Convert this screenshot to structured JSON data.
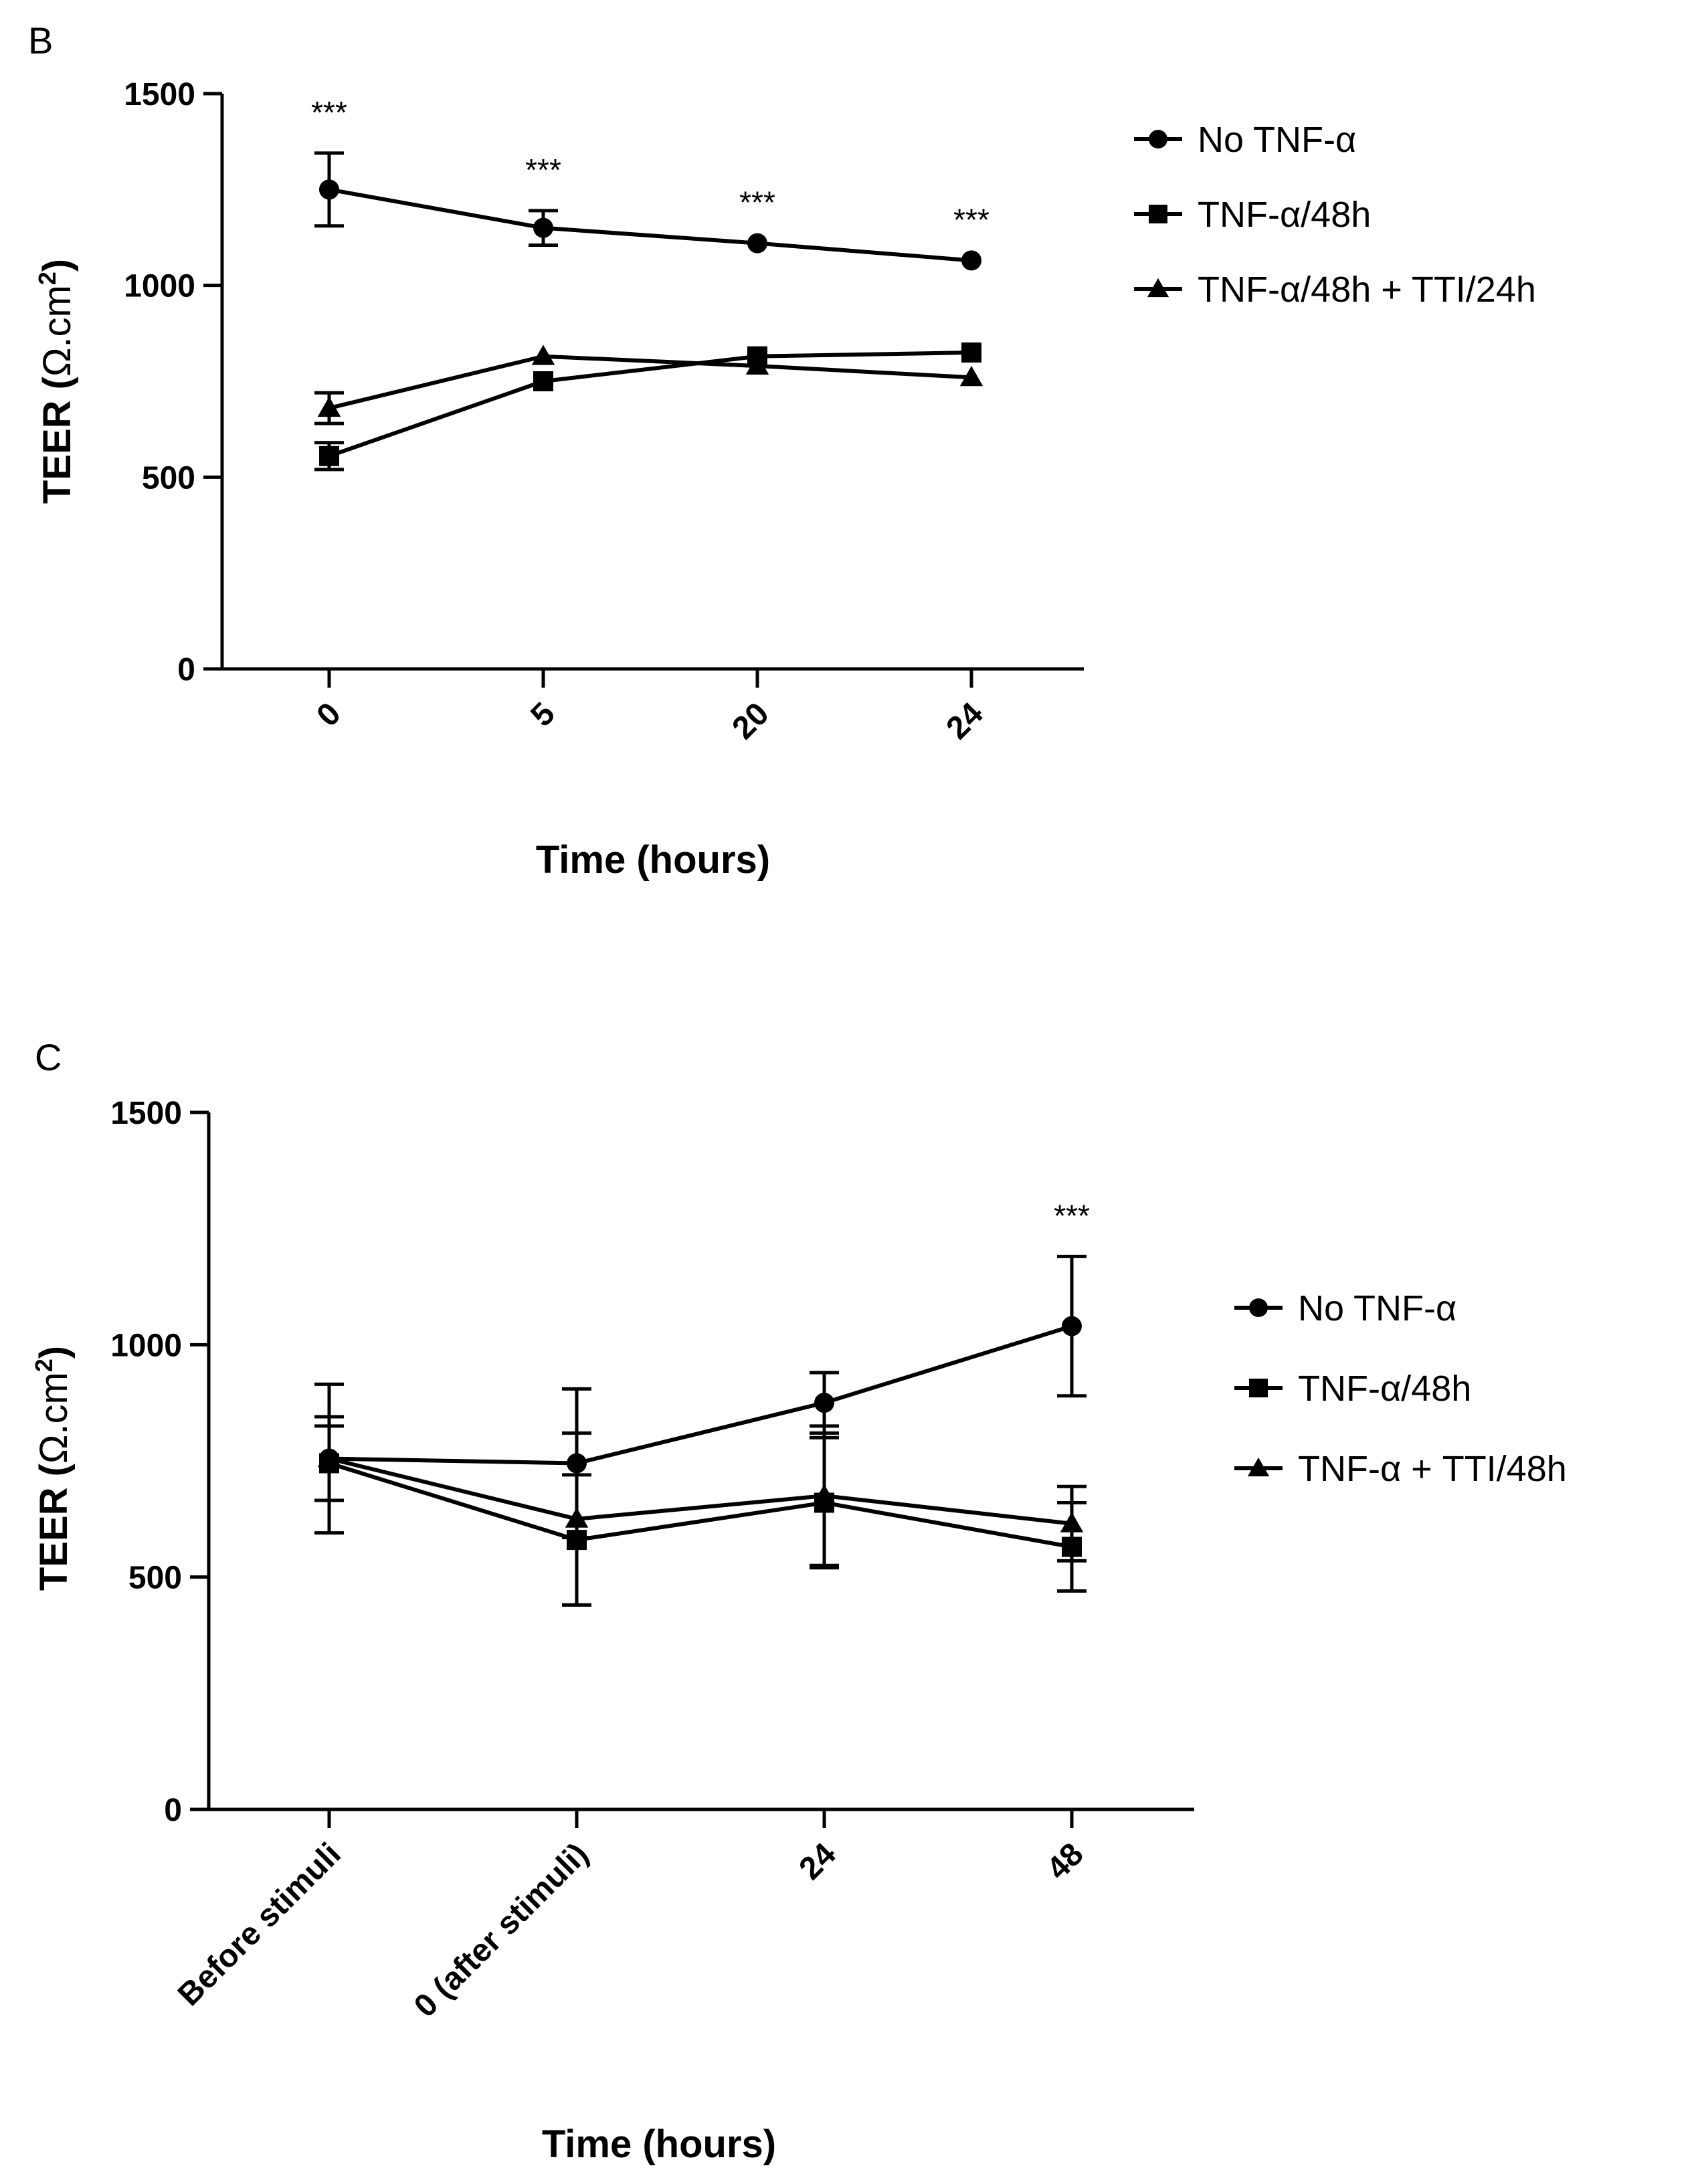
{
  "chart_data": [
    {
      "panel_label": "B",
      "type": "line",
      "title": "",
      "xlabel": "Time (hours)",
      "ylabel_main": "TEER (",
      "ylabel_unit": "Ω.cm",
      "ylabel_sup": "2",
      "ylabel_close": ")",
      "categories": [
        "0",
        "5",
        "20",
        "24"
      ],
      "ylim": [
        0,
        1500
      ],
      "yticks": [
        "0",
        "500",
        "1000",
        "1500"
      ],
      "ytick_values": [
        0,
        500,
        1000,
        1500
      ],
      "legend_position": "right",
      "series": [
        {
          "name": "No TNF-α",
          "marker": "circle",
          "values": [
            1250,
            1150,
            1110,
            1065
          ],
          "errors": [
            95,
            45,
            0,
            0
          ]
        },
        {
          "name": "TNF-α/48h",
          "marker": "square",
          "values": [
            555,
            750,
            815,
            825
          ],
          "errors": [
            35,
            0,
            0,
            0
          ]
        },
        {
          "name": "TNF-α/48h + TTI/24h",
          "marker": "triangle",
          "values": [
            680,
            815,
            790,
            760
          ],
          "errors": [
            40,
            0,
            0,
            0
          ]
        }
      ],
      "annotations": [
        {
          "category": "0",
          "text": "***"
        },
        {
          "category": "5",
          "text": "***"
        },
        {
          "category": "20",
          "text": "***"
        },
        {
          "category": "24",
          "text": "***"
        }
      ]
    },
    {
      "panel_label": "C",
      "type": "line",
      "title": "",
      "xlabel": "Time (hours)",
      "ylabel_main": "TEER (",
      "ylabel_unit": "Ω.cm",
      "ylabel_sup": "2",
      "ylabel_close": ")",
      "categories": [
        "Before stimuli",
        "0 (after stimuli)",
        "24",
        "48"
      ],
      "ylim": [
        0,
        1500
      ],
      "yticks": [
        "0",
        "500",
        "1000",
        "1500"
      ],
      "ytick_values": [
        0,
        500,
        1000,
        1500
      ],
      "legend_position": "right",
      "series": [
        {
          "name": "No TNF-α",
          "marker": "circle",
          "values": [
            755,
            745,
            875,
            1040
          ],
          "errors": [
            160,
            160,
            65,
            150
          ]
        },
        {
          "name": "TNF-α/48h",
          "marker": "square",
          "values": [
            745,
            580,
            660,
            565
          ],
          "errors": [
            80,
            140,
            140,
            95
          ]
        },
        {
          "name": "TNF-α +  TTI/48h",
          "marker": "triangle",
          "values": [
            755,
            625,
            675,
            615
          ],
          "errors": [
            90,
            185,
            150,
            80
          ]
        }
      ],
      "annotations": [
        {
          "category": "48",
          "text": "***"
        }
      ]
    }
  ]
}
